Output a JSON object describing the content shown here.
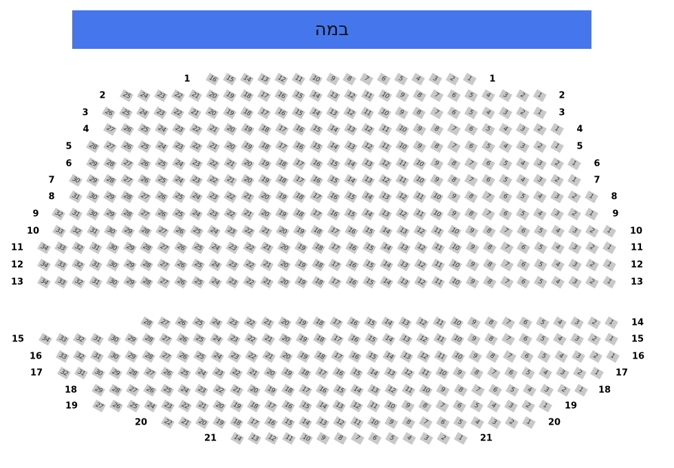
{
  "stage": {
    "label": "במה",
    "color": "#4576ec"
  },
  "seat_color": "#c9c9c9",
  "rows": [
    {
      "label": "1",
      "seat_count": 16,
      "left_label": true,
      "right_label": true
    },
    {
      "label": "2",
      "seat_count": 25,
      "left_label": true,
      "right_label": true
    },
    {
      "label": "3",
      "seat_count": 26,
      "left_label": true,
      "right_label": true
    },
    {
      "label": "4",
      "seat_count": 27,
      "left_label": true,
      "right_label": true
    },
    {
      "label": "5",
      "seat_count": 28,
      "left_label": true,
      "right_label": true
    },
    {
      "label": "6",
      "seat_count": 29,
      "left_label": true,
      "right_label": true
    },
    {
      "label": "7",
      "seat_count": 30,
      "left_label": true,
      "right_label": true
    },
    {
      "label": "8",
      "seat_count": 31,
      "left_label": true,
      "right_label": true
    },
    {
      "label": "9",
      "seat_count": 32,
      "left_label": true,
      "right_label": true
    },
    {
      "label": "10",
      "seat_count": 33,
      "left_label": true,
      "right_label": true
    },
    {
      "label": "11",
      "seat_count": 34,
      "left_label": true,
      "right_label": true
    },
    {
      "label": "12",
      "seat_count": 34,
      "left_label": true,
      "right_label": true
    },
    {
      "label": "13",
      "seat_count": 34,
      "left_label": true,
      "right_label": true
    },
    {
      "label": "14",
      "seat_count": 28,
      "left_label": false,
      "right_label": true
    },
    {
      "label": "15",
      "seat_count": 34,
      "left_label": true,
      "right_label": true
    },
    {
      "label": "16",
      "seat_count": 33,
      "left_label": true,
      "right_label": true
    },
    {
      "label": "17",
      "seat_count": 32,
      "left_label": true,
      "right_label": true
    },
    {
      "label": "18",
      "seat_count": 29,
      "left_label": true,
      "right_label": true
    },
    {
      "label": "19",
      "seat_count": 27,
      "left_label": true,
      "right_label": true
    },
    {
      "label": "20",
      "seat_count": 22,
      "left_label": true,
      "right_label": true
    },
    {
      "label": "21",
      "seat_count": 14,
      "left_label": true,
      "right_label": true
    }
  ]
}
